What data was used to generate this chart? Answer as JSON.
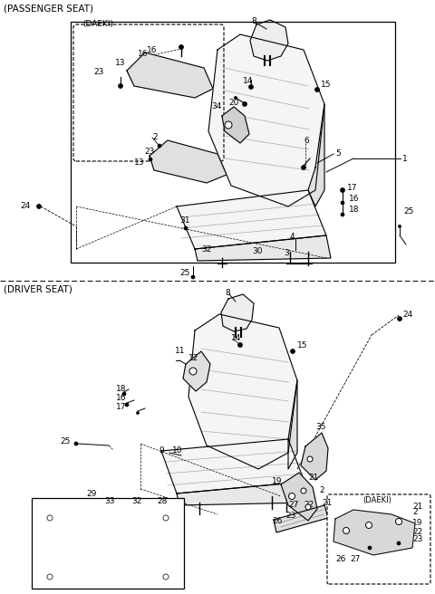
{
  "bg_color": "#ffffff",
  "lc": "#000000",
  "tc": "#000000",
  "fig_width": 4.8,
  "fig_height": 6.56,
  "dpi": 100,
  "passenger_label": "(PASSENGER SEAT)",
  "driver_label": "(DRIVER SEAT)",
  "daeki_label": "(DAEKI)",
  "daeki_label2": "(DAEKI)",
  "fs": 6.5,
  "fs_section": 7.5
}
